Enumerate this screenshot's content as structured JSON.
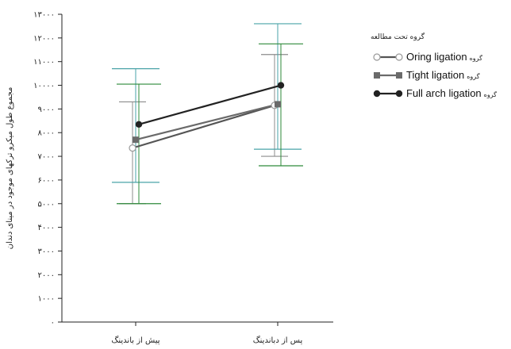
{
  "chart_data": {
    "type": "line",
    "ylabel": "مجموع طول میکرو ترکهای موجود در مینای دندان",
    "xlabel": "",
    "ylim": [
      0,
      13000
    ],
    "yticks": [
      0,
      1000,
      2000,
      3000,
      4000,
      5000,
      6000,
      7000,
      8000,
      9000,
      10000,
      11000,
      12000,
      13000
    ],
    "ytick_labels": [
      "۰",
      "۱۰۰۰",
      "۲۰۰۰",
      "۳۰۰۰",
      "۴۰۰۰",
      "۵۰۰۰",
      "۶۰۰۰",
      "۷۰۰۰",
      "۸۰۰۰",
      "۹۰۰۰",
      "۱۰۰۰۰",
      "۱۱۰۰۰",
      "۱۲۰۰۰",
      "۱۳۰۰۰"
    ],
    "categories": [
      "پیش از باندینگ",
      "پس از دباندینگ"
    ],
    "legend": {
      "title": "گروه تحت مطالعه",
      "prefix": "گروه",
      "position": "top-right"
    },
    "series": [
      {
        "name": "Oring ligation",
        "marker": "open-circle",
        "line_color": "#555555",
        "err_color": "#8c8c8c",
        "values": [
          7350,
          9150
        ],
        "err_low": [
          5000,
          7000
        ],
        "err_high": [
          9300,
          11300
        ]
      },
      {
        "name": "Tight ligation",
        "marker": "square",
        "line_color": "#6a6a6a",
        "err_color": "#4aa3a8",
        "values": [
          7700,
          9200
        ],
        "err_low": [
          5900,
          7300
        ],
        "err_high": [
          10700,
          12600
        ]
      },
      {
        "name": "Full arch ligation",
        "marker": "filled-circle",
        "line_color": "#222222",
        "err_color": "#2e8a3a",
        "values": [
          8350,
          10000
        ],
        "err_low": [
          5000,
          6600
        ],
        "err_high": [
          10050,
          11750
        ]
      }
    ]
  }
}
